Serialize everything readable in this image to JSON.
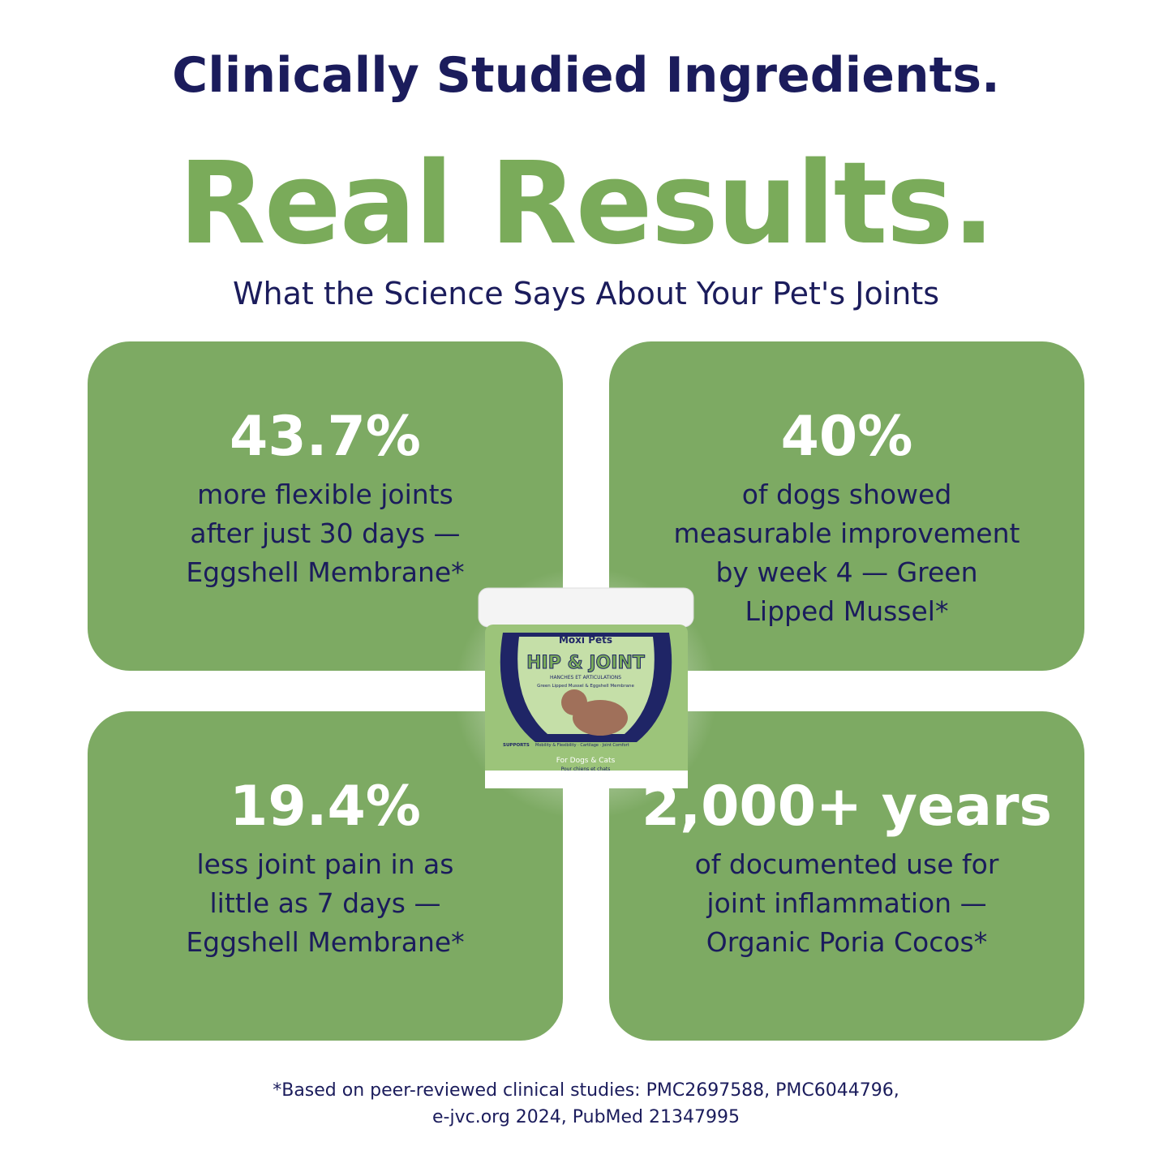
{
  "header": {
    "title": "Clinically Studied Ingredients.",
    "headline": "Real Results.",
    "subtitle": "What the Science Says About Your Pet's Joints"
  },
  "cards": [
    {
      "stat": "43.7%",
      "lines": [
        "more flexible joints",
        "after just 30 days —",
        "Eggshell Membrane*"
      ]
    },
    {
      "stat": "40%",
      "lines": [
        "of dogs showed",
        "measurable improvement",
        "by week 4 — Green",
        "Lipped Mussel*"
      ]
    },
    {
      "stat": "19.4%",
      "lines": [
        "less joint pain in as",
        "little as 7 days —",
        "Eggshell Membrane*"
      ]
    },
    {
      "stat": "2,000+ years",
      "lines": [
        "of documented use for",
        "joint inflammation —",
        "Organic Poria Cocos*"
      ]
    }
  ],
  "product": {
    "brand": "Moxi Pets",
    "name": "HIP & JOINT",
    "name_fr": "HANCHES ET ARTICULATIONS",
    "ingredients": "Green Lipped Mussel & Eggshell Membrane",
    "supports": "SUPPORTS",
    "benefits": "Mobility & Flexibility · Cartilage · Joint Comfort",
    "audience": "For Dogs & Cats",
    "audience_fr": "Pour chiens et chats"
  },
  "footnote": {
    "lines": [
      "*Based on peer-reviewed clinical studies: PMC2697588, PMC6044796,",
      "e-jvc.org 2024, PubMed 21347995"
    ]
  }
}
